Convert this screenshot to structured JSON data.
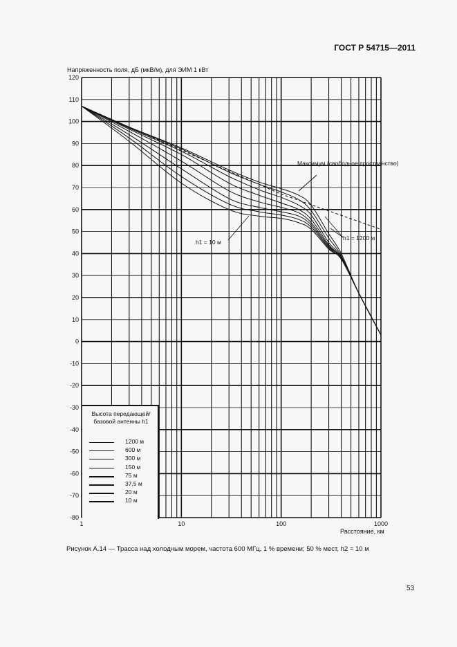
{
  "document": {
    "header": "ГОСТ Р 54715—2011",
    "caption": "Рисунок А.14 — Трасса над холодным морем, частота 600 МГц, 1 % времени; 50 % мест, h2 = 10 м",
    "page_number": "53"
  },
  "chart_data": {
    "type": "line",
    "ylabel": "Напряженность поля, дБ (мкВ/м), для ЭИМ 1 кВт",
    "xlabel": "Расстояние, км",
    "x_scale": "log",
    "xlim": [
      1,
      1000
    ],
    "ylim": [
      -80,
      120
    ],
    "x_ticks": [
      "1",
      "10",
      "100",
      "1000"
    ],
    "y_ticks": [
      "120",
      "110",
      "100",
      "90",
      "80",
      "70",
      "60",
      "50",
      "40",
      "30",
      "20",
      "10",
      "0",
      "-10",
      "-20",
      "-30",
      "-40",
      "-50",
      "-60",
      "-70",
      "-80"
    ],
    "grid": true,
    "legend": {
      "title": "Высота передающей/ базовой антенны h1",
      "placement": "bottom-left",
      "entries": [
        "1200 м",
        "600 м",
        "300 м",
        "150 м",
        "75 м",
        "37,5 м",
        "20 м",
        "10 м"
      ]
    },
    "annotations": {
      "max_label": "Максимум (свободное пространство)",
      "h1_low": "h1 = 10 м",
      "h1_high": "h1 = 1200 м"
    },
    "free_space": {
      "name": "Максимум (свободное пространство)",
      "x": [
        1,
        10,
        100,
        1000
      ],
      "y": [
        107,
        87,
        67,
        51
      ]
    },
    "series": [
      {
        "name": "1200 м",
        "x": [
          1,
          3,
          10,
          30,
          60,
          100,
          150,
          200,
          300,
          400,
          600,
          1000
        ],
        "y": [
          107,
          97.5,
          88,
          78,
          72.5,
          69.5,
          66.5,
          62,
          49,
          40,
          22,
          3
        ]
      },
      {
        "name": "600 м",
        "x": [
          1,
          3,
          10,
          30,
          60,
          100,
          150,
          200,
          300,
          400,
          600,
          1000
        ],
        "y": [
          107,
          97.3,
          87.5,
          77,
          71.5,
          68,
          64.5,
          59.5,
          47,
          39,
          22,
          3
        ]
      },
      {
        "name": "300 м",
        "x": [
          1,
          3,
          10,
          30,
          60,
          100,
          150,
          200,
          300,
          400,
          600,
          1000
        ],
        "y": [
          107,
          97,
          86.5,
          75,
          69,
          65.5,
          62,
          57.5,
          45,
          38.5,
          22,
          3
        ]
      },
      {
        "name": "150 м",
        "x": [
          1,
          3,
          10,
          30,
          60,
          100,
          150,
          200,
          300,
          400,
          600,
          1000
        ],
        "y": [
          107,
          96.5,
          85,
          72,
          66.5,
          63,
          60,
          55.5,
          44,
          38,
          22,
          3
        ]
      },
      {
        "name": "75 м",
        "x": [
          1,
          3,
          10,
          30,
          60,
          100,
          150,
          200,
          300,
          400,
          600,
          1000
        ],
        "y": [
          107,
          95.5,
          82,
          68.5,
          63.5,
          61,
          58.5,
          54,
          43.5,
          38,
          22,
          3
        ]
      },
      {
        "name": "37,5 м",
        "x": [
          1,
          3,
          10,
          30,
          60,
          100,
          150,
          200,
          300,
          400,
          600,
          1000
        ],
        "y": [
          107,
          94,
          78.5,
          65,
          61,
          59,
          57,
          53,
          43,
          38,
          22,
          3
        ]
      },
      {
        "name": "20 м",
        "x": [
          1,
          3,
          10,
          30,
          60,
          100,
          150,
          200,
          300,
          400,
          600,
          1000
        ],
        "y": [
          107,
          92.5,
          75,
          62.5,
          59,
          57.5,
          55.5,
          52,
          42.5,
          37.5,
          22,
          3
        ]
      },
      {
        "name": "10 м",
        "x": [
          1,
          3,
          10,
          30,
          60,
          100,
          150,
          200,
          300,
          400,
          600,
          1000
        ],
        "y": [
          107,
          91,
          72,
          60,
          57,
          56,
          54,
          51,
          42,
          37.5,
          22,
          3
        ]
      }
    ]
  }
}
